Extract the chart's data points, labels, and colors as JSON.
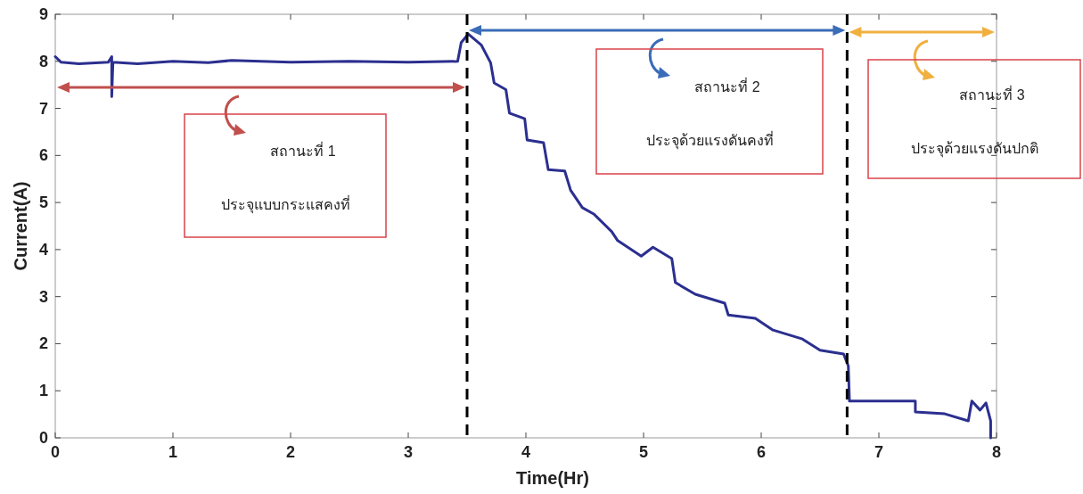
{
  "chart_data": {
    "type": "line",
    "xlabel": "Time(Hr)",
    "ylabel": "Current(A)",
    "xlim": [
      0,
      8
    ],
    "ylim": [
      0,
      9
    ],
    "xticks": [
      0,
      1,
      2,
      3,
      4,
      5,
      6,
      7,
      8
    ],
    "yticks": [
      0,
      1,
      2,
      3,
      4,
      5,
      6,
      7,
      8,
      9
    ],
    "grid": false,
    "marker": "none",
    "line_style": "solid",
    "series": [
      {
        "color": "#2b2f8f",
        "x": [
          0,
          0.05,
          0.2,
          0.45,
          0.48,
          0.48,
          0.49,
          0.7,
          1.0,
          1.3,
          1.5,
          2.0,
          2.5,
          3.0,
          3.42,
          3.45,
          3.51,
          3.62,
          3.7,
          3.73,
          3.83,
          3.86,
          3.99,
          4.01,
          4.15,
          4.19,
          4.33,
          4.38,
          4.48,
          4.58,
          4.73,
          4.78,
          4.98,
          5.08,
          5.24,
          5.27,
          5.44,
          5.69,
          5.72,
          5.95,
          6.1,
          6.35,
          6.5,
          6.7,
          6.74,
          6.75,
          7.31,
          7.31,
          7.56,
          7.76,
          7.79,
          7.86,
          7.91,
          7.95,
          7.95
        ],
        "values": [
          8.1,
          7.98,
          7.95,
          7.98,
          8.1,
          7.25,
          7.98,
          7.95,
          8.0,
          7.97,
          8.02,
          7.98,
          8.0,
          7.98,
          8.0,
          8.4,
          8.58,
          8.35,
          7.97,
          7.54,
          7.4,
          6.9,
          6.78,
          6.33,
          6.27,
          5.7,
          5.67,
          5.26,
          4.89,
          4.75,
          4.38,
          4.19,
          3.86,
          4.05,
          3.81,
          3.3,
          3.05,
          2.86,
          2.61,
          2.54,
          2.29,
          2.1,
          1.86,
          1.78,
          1.53,
          0.78,
          0.78,
          0.55,
          0.51,
          0.36,
          0.78,
          0.59,
          0.74,
          0.36,
          0.0
        ]
      }
    ],
    "ref_lines": [
      {
        "axis": "x",
        "value": 3.5,
        "color": "#000000",
        "line_style": "dashed"
      },
      {
        "axis": "x",
        "value": 6.73,
        "color": "#000000",
        "line_style": "dashed"
      }
    ],
    "annotations": [
      "สถานะที่ 1",
      "ประจุแบบกระแสคงที่",
      "สถานะที่ 2",
      "ประจุด้วยแรงดันคงที่",
      "สถานะที่ 3",
      "ประจุด้วยแรงดันปกติ"
    ]
  }
}
